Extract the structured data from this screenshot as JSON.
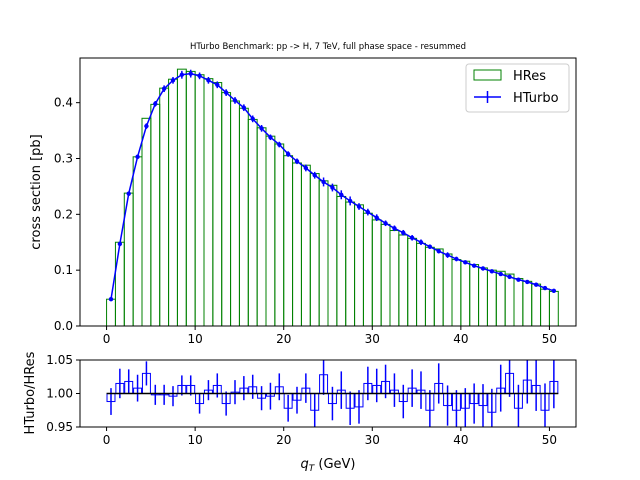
{
  "chart_data": [
    {
      "type": "bar",
      "title": "HTurbo Benchmark: pp -> H, 7 TeV, full phase space - resummed",
      "xlabel": "",
      "ylabel": "cross section [pb]",
      "xlim": [
        -3,
        53
      ],
      "ylim": [
        0,
        0.48
      ],
      "xticks": [
        0,
        10,
        20,
        30,
        40,
        50
      ],
      "yticks": [
        0.0,
        0.1,
        0.2,
        0.3,
        0.4
      ],
      "ytick_labels": [
        "0.0",
        "0.1",
        "0.2",
        "0.3",
        "0.4"
      ],
      "bin_width": 1,
      "bin_start": 0,
      "legend": {
        "placement": "top-right",
        "entries": [
          "HRes",
          "HTurbo"
        ]
      },
      "series": [
        {
          "name": "HRes",
          "kind": "histogram",
          "color": "#008000",
          "values": [
            0.048,
            0.15,
            0.238,
            0.303,
            0.372,
            0.397,
            0.426,
            0.442,
            0.46,
            0.456,
            0.45,
            0.443,
            0.436,
            0.418,
            0.403,
            0.39,
            0.37,
            0.355,
            0.34,
            0.326,
            0.305,
            0.292,
            0.288,
            0.273,
            0.26,
            0.252,
            0.232,
            0.222,
            0.217,
            0.202,
            0.19,
            0.182,
            0.171,
            0.163,
            0.157,
            0.148,
            0.141,
            0.138,
            0.129,
            0.119,
            0.116,
            0.11,
            0.104,
            0.1,
            0.098,
            0.093,
            0.085,
            0.08,
            0.075,
            0.066,
            0.062
          ]
        },
        {
          "name": "HTurbo",
          "kind": "line-errorbar",
          "color": "#0000ff",
          "x": [
            0.5,
            1.5,
            2.5,
            3.5,
            4.5,
            5.5,
            6.5,
            7.5,
            8.5,
            9.5,
            10.5,
            11.5,
            12.5,
            13.5,
            14.5,
            15.5,
            16.5,
            17.5,
            18.5,
            19.5,
            20.5,
            21.5,
            22.5,
            23.5,
            24.5,
            25.5,
            26.5,
            27.5,
            28.5,
            29.5,
            30.5,
            31.5,
            32.5,
            33.5,
            34.5,
            35.5,
            36.5,
            37.5,
            38.5,
            39.5,
            40.5,
            41.5,
            42.5,
            43.5,
            44.5,
            45.5,
            46.5,
            47.5,
            48.5,
            49.5,
            50.5
          ],
          "values": [
            0.048,
            0.147,
            0.237,
            0.303,
            0.358,
            0.398,
            0.425,
            0.44,
            0.45,
            0.452,
            0.448,
            0.44,
            0.432,
            0.418,
            0.404,
            0.391,
            0.371,
            0.354,
            0.338,
            0.325,
            0.308,
            0.295,
            0.283,
            0.27,
            0.258,
            0.248,
            0.235,
            0.224,
            0.214,
            0.204,
            0.194,
            0.184,
            0.175,
            0.167,
            0.158,
            0.15,
            0.142,
            0.134,
            0.127,
            0.12,
            0.114,
            0.108,
            0.103,
            0.098,
            0.093,
            0.088,
            0.083,
            0.079,
            0.074,
            0.068,
            0.063
          ],
          "errors": [
            0.002,
            0.003,
            0.004,
            0.004,
            0.005,
            0.005,
            0.006,
            0.006,
            0.007,
            0.007,
            0.006,
            0.006,
            0.006,
            0.006,
            0.006,
            0.006,
            0.006,
            0.006,
            0.005,
            0.005,
            0.005,
            0.005,
            0.006,
            0.006,
            0.008,
            0.007,
            0.008,
            0.008,
            0.006,
            0.006,
            0.006,
            0.005,
            0.005,
            0.005,
            0.005,
            0.005,
            0.004,
            0.004,
            0.005,
            0.004,
            0.003,
            0.003,
            0.003,
            0.003,
            0.003,
            0.003,
            0.003,
            0.003,
            0.003,
            0.003,
            0.003
          ]
        }
      ]
    },
    {
      "type": "line",
      "title": "",
      "xlabel": "q_T (GeV)",
      "ylabel": "HTurbo/HRes",
      "xlim": [
        -3,
        53
      ],
      "ylim": [
        0.95,
        1.05
      ],
      "xticks": [
        0,
        10,
        20,
        30,
        40,
        50
      ],
      "yticks": [
        0.95,
        1.0,
        1.05
      ],
      "ytick_labels": [
        "0.95",
        "1.00",
        "1.05"
      ],
      "reference_line": 1.0,
      "series": [
        {
          "name": "HTurbo/HRes",
          "kind": "step-errorbar",
          "color": "#0000ff",
          "x": [
            0.5,
            1.5,
            2.5,
            3.5,
            4.5,
            5.5,
            6.5,
            7.5,
            8.5,
            9.5,
            10.5,
            11.5,
            12.5,
            13.5,
            14.5,
            15.5,
            16.5,
            17.5,
            18.5,
            19.5,
            20.5,
            21.5,
            22.5,
            23.5,
            24.5,
            25.5,
            26.5,
            27.5,
            28.5,
            29.5,
            30.5,
            31.5,
            32.5,
            33.5,
            34.5,
            35.5,
            36.5,
            37.5,
            38.5,
            39.5,
            40.5,
            41.5,
            42.5,
            43.5,
            44.5,
            45.5,
            46.5,
            47.5,
            48.5,
            49.5,
            50.5
          ],
          "values": [
            0.988,
            1.015,
            1.018,
            1.008,
            1.03,
            0.998,
            0.998,
            0.996,
            1.012,
            1.012,
            0.985,
            1.005,
            1.012,
            0.985,
            1.002,
            1.008,
            1.01,
            0.993,
            0.996,
            1.01,
            0.978,
            0.99,
            1.008,
            0.975,
            1.028,
            0.985,
            1.005,
            0.978,
            0.98,
            1.015,
            1.012,
            1.018,
            1.005,
            0.988,
            1.008,
            1.005,
            0.975,
            1.015,
            0.982,
            0.975,
            0.978,
            0.985,
            0.982,
            0.972,
            1.008,
            1.03,
            0.978,
            1.02,
            1.012,
            0.975,
            1.018
          ],
          "errors": [
            0.02,
            0.022,
            0.018,
            0.02,
            0.018,
            0.015,
            0.015,
            0.015,
            0.015,
            0.015,
            0.015,
            0.015,
            0.018,
            0.018,
            0.018,
            0.018,
            0.018,
            0.018,
            0.02,
            0.02,
            0.02,
            0.02,
            0.022,
            0.025,
            0.03,
            0.025,
            0.028,
            0.025,
            0.025,
            0.025,
            0.025,
            0.025,
            0.025,
            0.025,
            0.028,
            0.028,
            0.03,
            0.03,
            0.03,
            0.03,
            0.03,
            0.03,
            0.032,
            0.035,
            0.035,
            0.035,
            0.035,
            0.035,
            0.038,
            0.04,
            0.04
          ]
        }
      ]
    }
  ]
}
